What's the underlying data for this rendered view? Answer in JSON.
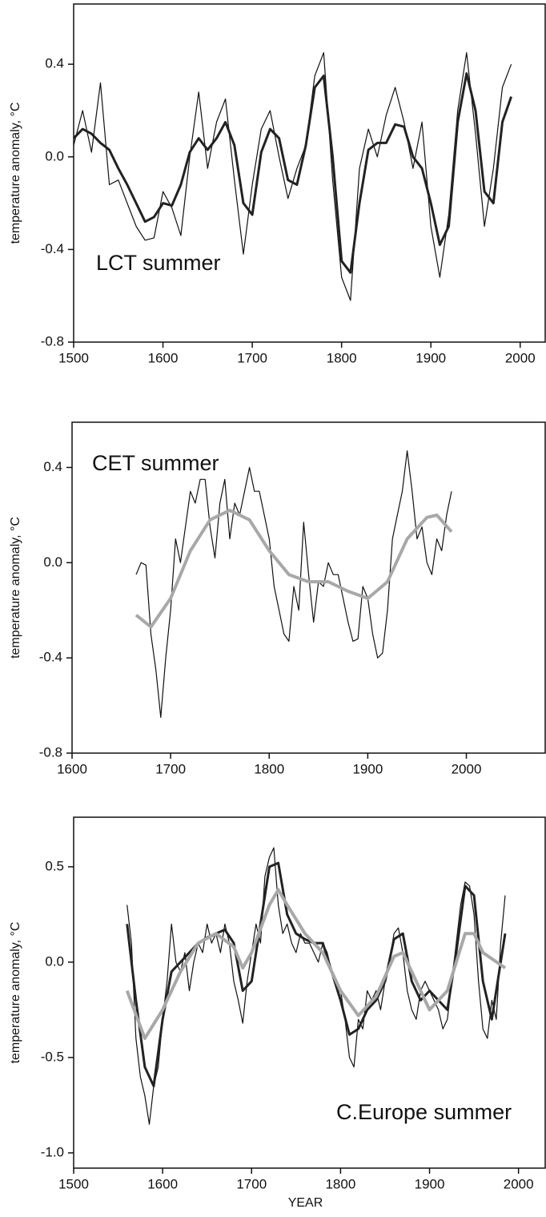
{
  "chart_data": [
    {
      "type": "line",
      "annotation": "LCT summer",
      "ylabel": "temperature anomaly, °C",
      "xlim": [
        1500,
        2028
      ],
      "xticks": [
        1500,
        1600,
        1700,
        1800,
        1900,
        2000
      ],
      "ylim": [
        -0.8,
        0.66
      ],
      "yticks": [
        -0.8,
        -0.4,
        {
          "value": 0,
          "label": "0.0"
        },
        0.4
      ],
      "series": [
        {
          "color": "#111111",
          "width": 1.2,
          "x": [
            1500,
            1510,
            1520,
            1530,
            1540,
            1550,
            1560,
            1570,
            1580,
            1590,
            1600,
            1610,
            1620,
            1630,
            1640,
            1650,
            1660,
            1670,
            1680,
            1690,
            1700,
            1710,
            1720,
            1730,
            1740,
            1750,
            1760,
            1770,
            1780,
            1790,
            1800,
            1810,
            1820,
            1830,
            1840,
            1850,
            1860,
            1870,
            1880,
            1890,
            1900,
            1910,
            1920,
            1930,
            1940,
            1950,
            1960,
            1970,
            1980,
            1990
          ],
          "values": [
            0.05,
            0.2,
            0.02,
            0.32,
            -0.12,
            -0.1,
            -0.2,
            -0.3,
            -0.36,
            -0.35,
            -0.15,
            -0.22,
            -0.34,
            0.0,
            0.28,
            -0.05,
            0.15,
            0.25,
            -0.1,
            -0.42,
            -0.12,
            0.12,
            0.2,
            0.0,
            -0.18,
            -0.05,
            0.05,
            0.35,
            0.45,
            -0.1,
            -0.52,
            -0.62,
            -0.05,
            0.12,
            0.0,
            0.18,
            0.3,
            0.15,
            -0.05,
            0.15,
            -0.3,
            -0.52,
            -0.25,
            0.2,
            0.45,
            0.1,
            -0.3,
            -0.05,
            0.3,
            0.4
          ]
        },
        {
          "color": "#222222",
          "width": 3,
          "x": [
            1500,
            1510,
            1520,
            1530,
            1540,
            1550,
            1560,
            1570,
            1580,
            1590,
            1600,
            1610,
            1620,
            1630,
            1640,
            1650,
            1660,
            1670,
            1680,
            1690,
            1700,
            1710,
            1720,
            1730,
            1740,
            1750,
            1760,
            1770,
            1780,
            1790,
            1800,
            1810,
            1820,
            1830,
            1840,
            1850,
            1860,
            1870,
            1880,
            1890,
            1900,
            1910,
            1920,
            1930,
            1940,
            1950,
            1960,
            1970,
            1980,
            1990
          ],
          "values": [
            0.08,
            0.12,
            0.1,
            0.06,
            0.03,
            -0.05,
            -0.12,
            -0.2,
            -0.28,
            -0.26,
            -0.2,
            -0.21,
            -0.12,
            0.02,
            0.08,
            0.03,
            0.08,
            0.15,
            0.05,
            -0.2,
            -0.25,
            0.02,
            0.12,
            0.08,
            -0.1,
            -0.12,
            0.05,
            0.3,
            0.35,
            0.0,
            -0.45,
            -0.5,
            -0.2,
            0.03,
            0.06,
            0.06,
            0.14,
            0.13,
            0.0,
            -0.05,
            -0.2,
            -0.38,
            -0.3,
            0.15,
            0.36,
            0.2,
            -0.15,
            -0.2,
            0.15,
            0.26
          ]
        }
      ]
    },
    {
      "type": "line",
      "annotation": "CET summer",
      "ylabel": "temperature anomaly, °C",
      "xlim": [
        1600,
        2080
      ],
      "xticks": [
        1600,
        1700,
        1800,
        1900,
        2000
      ],
      "ylim": [
        -0.8,
        0.59
      ],
      "yticks": [
        -0.8,
        -0.4,
        {
          "value": 0,
          "label": "0.0"
        },
        0.4
      ],
      "series": [
        {
          "color": "#111111",
          "width": 1.2,
          "x": [
            1665,
            1670,
            1675,
            1680,
            1685,
            1690,
            1695,
            1700,
            1705,
            1710,
            1715,
            1720,
            1725,
            1730,
            1735,
            1740,
            1745,
            1750,
            1755,
            1760,
            1765,
            1770,
            1775,
            1780,
            1785,
            1790,
            1795,
            1800,
            1805,
            1810,
            1815,
            1820,
            1825,
            1830,
            1835,
            1840,
            1845,
            1850,
            1855,
            1860,
            1865,
            1870,
            1875,
            1880,
            1885,
            1890,
            1895,
            1900,
            1905,
            1910,
            1915,
            1920,
            1925,
            1930,
            1935,
            1940,
            1945,
            1950,
            1955,
            1960,
            1965,
            1970,
            1975,
            1980,
            1985
          ],
          "values": [
            -0.05,
            0.0,
            -0.01,
            -0.3,
            -0.45,
            -0.65,
            -0.4,
            -0.2,
            0.1,
            0.0,
            0.15,
            0.3,
            0.25,
            0.35,
            0.35,
            0.15,
            0.02,
            0.25,
            0.35,
            0.1,
            0.25,
            0.2,
            0.3,
            0.4,
            0.3,
            0.3,
            0.2,
            0.1,
            -0.1,
            -0.2,
            -0.3,
            -0.33,
            -0.1,
            -0.2,
            0.17,
            -0.05,
            -0.25,
            -0.08,
            -0.1,
            0.0,
            -0.05,
            -0.05,
            -0.15,
            -0.25,
            -0.33,
            -0.32,
            -0.1,
            -0.15,
            -0.3,
            -0.4,
            -0.38,
            -0.2,
            0.1,
            0.2,
            0.3,
            0.47,
            0.3,
            0.1,
            0.15,
            0.0,
            -0.05,
            0.1,
            0.05,
            0.2,
            0.3
          ]
        },
        {
          "color": "#a8a8a8",
          "width": 4,
          "x": [
            1665,
            1680,
            1700,
            1720,
            1740,
            1760,
            1780,
            1800,
            1820,
            1840,
            1860,
            1880,
            1900,
            1920,
            1940,
            1960,
            1970,
            1985
          ],
          "values": [
            -0.22,
            -0.27,
            -0.15,
            0.05,
            0.18,
            0.22,
            0.18,
            0.05,
            -0.05,
            -0.08,
            -0.08,
            -0.12,
            -0.15,
            -0.08,
            0.1,
            0.19,
            0.2,
            0.13
          ]
        }
      ]
    },
    {
      "type": "line",
      "annotation": "C.Europe summer",
      "ylabel": "temperature anomaly, °C",
      "xlabel": "YEAR",
      "xlim": [
        1500,
        2030
      ],
      "xticks": [
        1500,
        1600,
        1700,
        1800,
        1900,
        2000
      ],
      "ylim": [
        -1.08,
        0.76
      ],
      "yticks": [
        {
          "value": -1,
          "label": "-1.0"
        },
        -0.5,
        {
          "value": 0,
          "label": "0.0"
        },
        0.5
      ],
      "series": [
        {
          "color": "#111111",
          "width": 1.2,
          "x": [
            1560,
            1565,
            1570,
            1575,
            1580,
            1585,
            1590,
            1595,
            1600,
            1605,
            1610,
            1615,
            1620,
            1625,
            1630,
            1635,
            1640,
            1645,
            1650,
            1655,
            1660,
            1665,
            1670,
            1675,
            1680,
            1685,
            1690,
            1695,
            1700,
            1705,
            1710,
            1715,
            1720,
            1725,
            1730,
            1735,
            1740,
            1745,
            1750,
            1755,
            1760,
            1765,
            1770,
            1775,
            1780,
            1785,
            1790,
            1795,
            1800,
            1805,
            1810,
            1815,
            1820,
            1825,
            1830,
            1835,
            1840,
            1845,
            1850,
            1855,
            1860,
            1865,
            1870,
            1875,
            1880,
            1885,
            1890,
            1895,
            1900,
            1905,
            1910,
            1915,
            1920,
            1925,
            1930,
            1935,
            1940,
            1945,
            1950,
            1955,
            1960,
            1965,
            1970,
            1975,
            1980,
            1985
          ],
          "values": [
            0.3,
            0.1,
            -0.4,
            -0.6,
            -0.7,
            -0.85,
            -0.65,
            -0.55,
            -0.3,
            -0.1,
            0.2,
            0.0,
            -0.05,
            0.05,
            -0.15,
            0.0,
            0.1,
            0.05,
            0.2,
            0.1,
            0.15,
            0.05,
            0.2,
            0.1,
            -0.1,
            -0.2,
            -0.32,
            -0.1,
            0.05,
            0.2,
            0.1,
            0.45,
            0.55,
            0.6,
            0.3,
            0.15,
            0.2,
            0.1,
            0.05,
            0.15,
            0.1,
            0.1,
            0.05,
            0.0,
            0.1,
            0.05,
            -0.05,
            -0.1,
            -0.15,
            -0.3,
            -0.5,
            -0.55,
            -0.3,
            -0.35,
            -0.15,
            -0.2,
            -0.15,
            -0.25,
            -0.1,
            0.0,
            0.15,
            0.18,
            0.05,
            -0.15,
            -0.25,
            -0.3,
            -0.15,
            -0.1,
            -0.15,
            -0.2,
            -0.25,
            -0.35,
            -0.3,
            -0.1,
            0.1,
            0.3,
            0.42,
            0.4,
            0.25,
            -0.1,
            -0.35,
            -0.4,
            -0.2,
            -0.3,
            0.1,
            0.35
          ]
        },
        {
          "color": "#222222",
          "width": 3,
          "x": [
            1560,
            1570,
            1580,
            1590,
            1600,
            1610,
            1620,
            1630,
            1640,
            1650,
            1660,
            1670,
            1680,
            1690,
            1700,
            1710,
            1720,
            1730,
            1740,
            1750,
            1760,
            1770,
            1780,
            1790,
            1800,
            1810,
            1820,
            1830,
            1840,
            1850,
            1860,
            1870,
            1880,
            1890,
            1900,
            1910,
            1920,
            1930,
            1940,
            1950,
            1960,
            1970,
            1980,
            1985
          ],
          "values": [
            0.2,
            -0.2,
            -0.55,
            -0.65,
            -0.3,
            -0.05,
            0.0,
            0.05,
            0.1,
            0.13,
            0.15,
            0.17,
            0.1,
            -0.15,
            -0.1,
            0.2,
            0.5,
            0.52,
            0.25,
            0.15,
            0.12,
            0.1,
            0.1,
            -0.05,
            -0.2,
            -0.38,
            -0.35,
            -0.25,
            -0.2,
            -0.1,
            0.12,
            0.15,
            -0.1,
            -0.2,
            -0.15,
            -0.2,
            -0.25,
            0.05,
            0.4,
            0.35,
            -0.1,
            -0.3,
            0.0,
            0.15
          ]
        },
        {
          "color": "#a8a8a8",
          "width": 4,
          "x": [
            1560,
            1580,
            1600,
            1620,
            1640,
            1660,
            1680,
            1690,
            1700,
            1720,
            1730,
            1740,
            1760,
            1780,
            1800,
            1820,
            1840,
            1860,
            1870,
            1880,
            1900,
            1920,
            1940,
            1950,
            1960,
            1985
          ],
          "values": [
            -0.15,
            -0.4,
            -0.25,
            -0.05,
            0.1,
            0.15,
            0.08,
            -0.03,
            0.05,
            0.3,
            0.38,
            0.3,
            0.15,
            0.05,
            -0.15,
            -0.28,
            -0.18,
            0.03,
            0.05,
            -0.05,
            -0.25,
            -0.15,
            0.15,
            0.15,
            0.05,
            -0.03
          ]
        }
      ]
    }
  ]
}
